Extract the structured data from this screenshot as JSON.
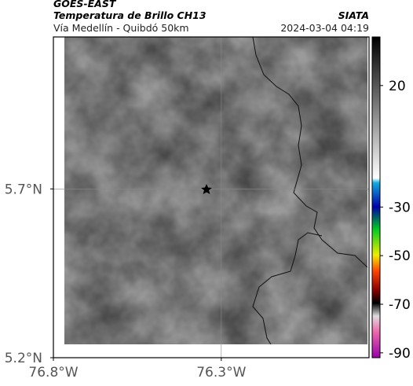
{
  "header": {
    "title": "GOES-EAST",
    "subtitle": "Temperatura de Brillo CH13",
    "source": "SIATA",
    "route": "Vía Medellín - Quibdó 50km",
    "datetime": "2024-03-04 04:19"
  },
  "map": {
    "xlim": [
      -76.8,
      -75.86
    ],
    "ylim": [
      5.2,
      6.15
    ],
    "xticks": [
      {
        "value": -76.8,
        "label": "76.8°W"
      },
      {
        "value": -76.3,
        "label": "76.3°W"
      }
    ],
    "yticks": [
      {
        "value": 5.2,
        "label": "5.2°N"
      },
      {
        "value": 5.7,
        "label": "5.7°N"
      }
    ],
    "grid": true
  },
  "colorbar": {
    "lim": [
      -92,
      40
    ],
    "ticks": [
      20,
      -30,
      -50,
      -70,
      -90
    ]
  }
}
